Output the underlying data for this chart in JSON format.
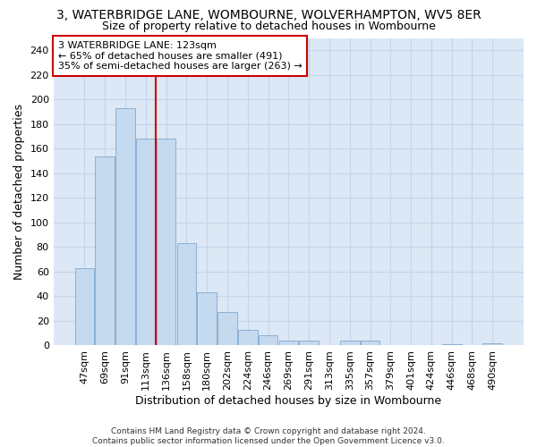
{
  "title": "3, WATERBRIDGE LANE, WOMBOURNE, WOLVERHAMPTON, WV5 8ER",
  "subtitle": "Size of property relative to detached houses in Wombourne",
  "xlabel": "Distribution of detached houses by size in Wombourne",
  "ylabel": "Number of detached properties",
  "categories": [
    "47sqm",
    "69sqm",
    "91sqm",
    "113sqm",
    "136sqm",
    "158sqm",
    "180sqm",
    "202sqm",
    "224sqm",
    "246sqm",
    "269sqm",
    "291sqm",
    "313sqm",
    "335sqm",
    "357sqm",
    "379sqm",
    "401sqm",
    "424sqm",
    "446sqm",
    "468sqm",
    "490sqm"
  ],
  "values": [
    63,
    154,
    193,
    168,
    168,
    83,
    43,
    27,
    13,
    8,
    4,
    4,
    0,
    4,
    4,
    0,
    0,
    0,
    1,
    0,
    2
  ],
  "bar_color": "#c5d9ef",
  "bar_edge_color": "#8ab0d4",
  "grid_color": "#c8d4e8",
  "plot_bg_color": "#dce8f5",
  "fig_bg_color": "#ffffff",
  "vline_color": "#cc0000",
  "vline_x_index": 4,
  "annotation_text": "3 WATERBRIDGE LANE: 123sqm\n← 65% of detached houses are smaller (491)\n35% of semi-detached houses are larger (263) →",
  "annotation_box_facecolor": "#ffffff",
  "annotation_box_edgecolor": "#cc0000",
  "footer_text": "Contains HM Land Registry data © Crown copyright and database right 2024.\nContains public sector information licensed under the Open Government Licence v3.0.",
  "ylim": [
    0,
    250
  ],
  "yticks": [
    0,
    20,
    40,
    60,
    80,
    100,
    120,
    140,
    160,
    180,
    200,
    220,
    240
  ],
  "title_fontsize": 10,
  "subtitle_fontsize": 9,
  "ylabel_fontsize": 9,
  "xlabel_fontsize": 9,
  "tick_fontsize": 8,
  "footer_fontsize": 6.5,
  "annotation_fontsize": 8
}
